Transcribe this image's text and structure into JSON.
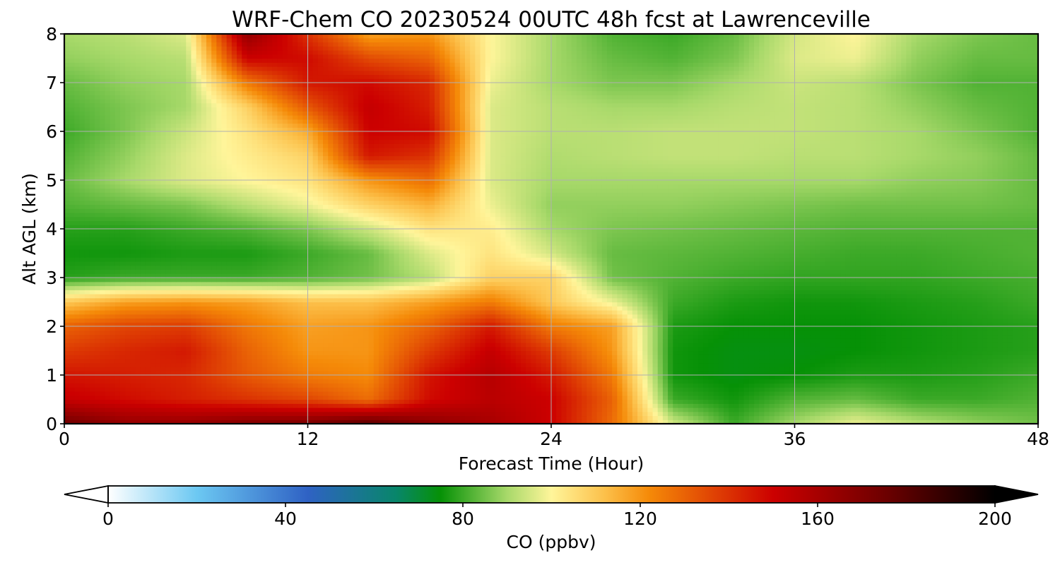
{
  "chart_data": {
    "type": "heatmap",
    "title": "WRF-Chem CO  20230524 00UTC 48h fcst at Lawrenceville",
    "xlabel": "Forecast Time (Hour)",
    "ylabel": "Alt AGL (km)",
    "xlim": [
      0,
      48
    ],
    "ylim": [
      0,
      8
    ],
    "xticks": [
      "0",
      "12",
      "24",
      "36",
      "48"
    ],
    "yticks": [
      "0",
      "1",
      "2",
      "3",
      "4",
      "5",
      "6",
      "7",
      "8"
    ],
    "grid": true,
    "colorbar": {
      "label": "CO  (ppbv)",
      "range": [
        0,
        200
      ],
      "ticks": [
        "0",
        "40",
        "80",
        "120",
        "160",
        "200"
      ],
      "extend": "both",
      "stops": [
        {
          "v": 0,
          "c": "#ffffff"
        },
        {
          "v": 20,
          "c": "#6cc8f2"
        },
        {
          "v": 45,
          "c": "#2f62c4"
        },
        {
          "v": 65,
          "c": "#08866a"
        },
        {
          "v": 75,
          "c": "#069106"
        },
        {
          "v": 90,
          "c": "#a8d96a"
        },
        {
          "v": 100,
          "c": "#fff59a"
        },
        {
          "v": 112,
          "c": "#fcc04a"
        },
        {
          "v": 122,
          "c": "#f58a08"
        },
        {
          "v": 150,
          "c": "#cc0000"
        },
        {
          "v": 175,
          "c": "#6e0000"
        },
        {
          "v": 200,
          "c": "#000000"
        }
      ]
    },
    "hours": [
      0,
      3,
      6,
      9,
      12,
      15,
      18,
      21,
      24,
      27,
      30,
      33,
      36,
      39,
      42,
      45,
      48
    ],
    "altitudes_km": [
      0,
      0.5,
      1,
      1.5,
      2,
      2.5,
      3,
      3.5,
      4,
      4.5,
      5,
      5.5,
      6,
      6.5,
      7,
      7.5,
      8
    ],
    "values_ppbv": [
      [
        175,
        165,
        165,
        170,
        172,
        180,
        168,
        160,
        150,
        128,
        95,
        80,
        90,
        98,
        92,
        88,
        85
      ],
      [
        152,
        148,
        144,
        140,
        136,
        128,
        148,
        155,
        150,
        130,
        80,
        76,
        82,
        84,
        80,
        80,
        82
      ],
      [
        146,
        144,
        142,
        132,
        125,
        122,
        146,
        156,
        145,
        125,
        76,
        74,
        75,
        77,
        77,
        78,
        80
      ],
      [
        138,
        142,
        145,
        130,
        120,
        120,
        138,
        152,
        138,
        120,
        76,
        74,
        74,
        75,
        76,
        77,
        78
      ],
      [
        130,
        136,
        138,
        126,
        118,
        120,
        130,
        145,
        125,
        118,
        77,
        75,
        75,
        75,
        76,
        77,
        78
      ],
      [
        110,
        118,
        120,
        118,
        112,
        112,
        118,
        125,
        110,
        98,
        80,
        77,
        76,
        76,
        77,
        78,
        80
      ],
      [
        78,
        80,
        80,
        80,
        82,
        85,
        92,
        108,
        108,
        85,
        82,
        80,
        79,
        79,
        79,
        80,
        81
      ],
      [
        76,
        76,
        77,
        77,
        80,
        84,
        96,
        104,
        95,
        84,
        83,
        82,
        81,
        80,
        80,
        81,
        82
      ],
      [
        78,
        78,
        80,
        82,
        86,
        94,
        104,
        102,
        90,
        86,
        85,
        84,
        83,
        82,
        82,
        82,
        82
      ],
      [
        82,
        84,
        86,
        92,
        98,
        108,
        115,
        98,
        88,
        88,
        88,
        87,
        86,
        85,
        85,
        85,
        84
      ],
      [
        84,
        90,
        96,
        100,
        104,
        120,
        128,
        96,
        90,
        90,
        90,
        90,
        90,
        90,
        88,
        87,
        84
      ],
      [
        82,
        88,
        96,
        102,
        108,
        145,
        140,
        96,
        91,
        92,
        93,
        93,
        92,
        92,
        90,
        88,
        84
      ],
      [
        80,
        86,
        94,
        104,
        116,
        150,
        148,
        96,
        92,
        92,
        93,
        93,
        93,
        92,
        90,
        86,
        82
      ],
      [
        82,
        86,
        90,
        108,
        132,
        152,
        144,
        96,
        92,
        90,
        90,
        92,
        93,
        92,
        88,
        84,
        82
      ],
      [
        84,
        88,
        90,
        125,
        145,
        148,
        142,
        98,
        90,
        86,
        86,
        90,
        94,
        92,
        86,
        82,
        82
      ],
      [
        88,
        90,
        92,
        150,
        148,
        135,
        130,
        100,
        90,
        84,
        82,
        86,
        96,
        98,
        88,
        84,
        84
      ],
      [
        90,
        92,
        96,
        165,
        140,
        118,
        120,
        100,
        90,
        82,
        80,
        84,
        95,
        100,
        90,
        86,
        84
      ]
    ]
  }
}
